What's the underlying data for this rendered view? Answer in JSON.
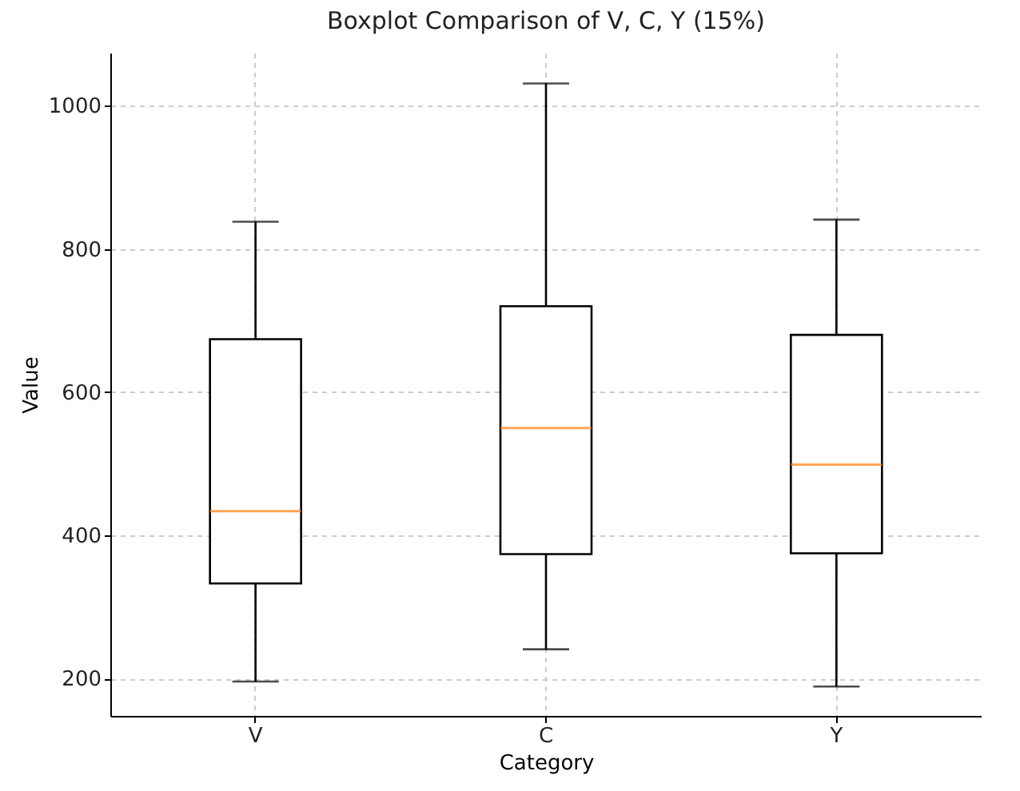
{
  "chart_data": {
    "type": "box",
    "title": "Boxplot Comparison of V, C, Y (15%)",
    "xlabel": "Category",
    "ylabel": "Value",
    "categories": [
      "V",
      "C",
      "Y"
    ],
    "boxes": [
      {
        "low": 196,
        "q1": 333,
        "median": 434,
        "q3": 674,
        "high": 838
      },
      {
        "low": 241,
        "q1": 374,
        "median": 550,
        "q3": 720,
        "high": 1031
      },
      {
        "low": 189,
        "q1": 375,
        "median": 499,
        "q3": 680,
        "high": 841
      }
    ],
    "ylim": [
      148,
      1074
    ],
    "yticks": [
      200,
      400,
      600,
      800,
      1000
    ],
    "grid": true
  }
}
